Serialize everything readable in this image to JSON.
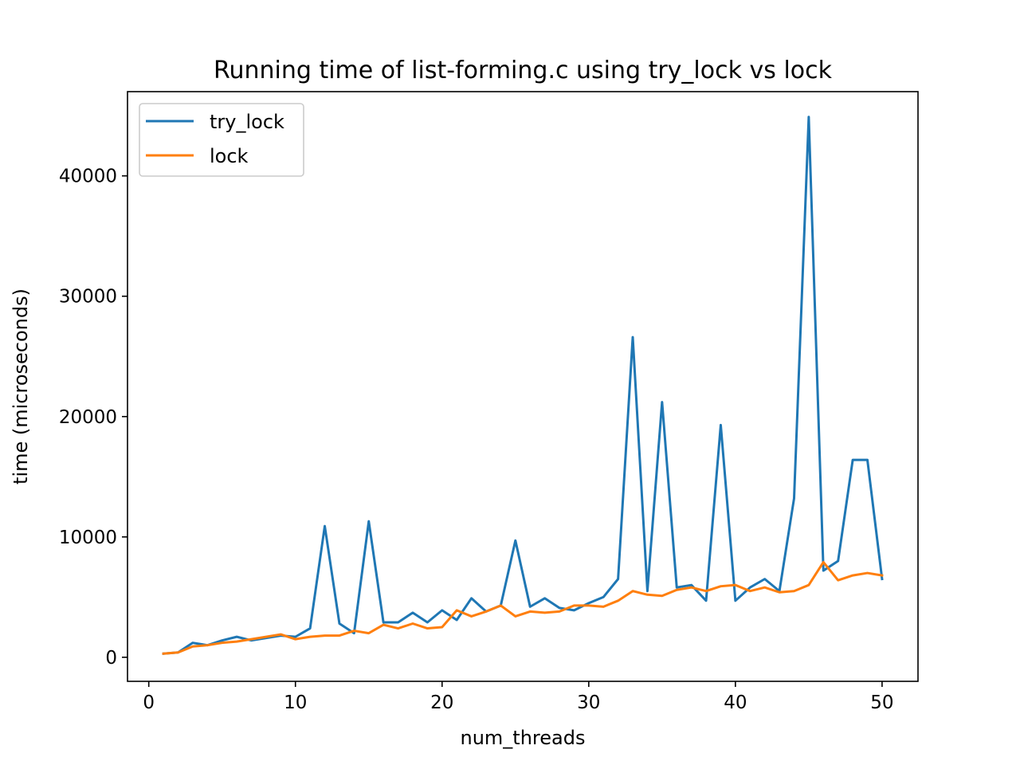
{
  "chart_data": {
    "type": "line",
    "title": "Running time of list-forming.c using try_lock vs lock",
    "xlabel": "num_threads",
    "ylabel": "time (microseconds)",
    "xlim": [
      -1.45,
      52.45
    ],
    "ylim": [
      -2000,
      47000
    ],
    "xticks": [
      0,
      10,
      20,
      30,
      40,
      50
    ],
    "yticks": [
      0,
      10000,
      20000,
      30000,
      40000
    ],
    "legend_position": "top-left",
    "grid": false,
    "x": [
      1,
      2,
      3,
      4,
      5,
      6,
      7,
      8,
      9,
      10,
      11,
      12,
      13,
      14,
      15,
      16,
      17,
      18,
      19,
      20,
      21,
      22,
      23,
      24,
      25,
      26,
      27,
      28,
      29,
      30,
      31,
      32,
      33,
      34,
      35,
      36,
      37,
      38,
      39,
      40,
      41,
      42,
      43,
      44,
      45,
      46,
      47,
      48,
      49,
      50
    ],
    "series": [
      {
        "name": "try_lock",
        "color": "#1f77b4",
        "values": [
          300,
          400,
          1200,
          1000,
          1400,
          1700,
          1400,
          1600,
          1800,
          1700,
          2400,
          10900,
          2800,
          2000,
          11300,
          2900,
          2900,
          3700,
          2900,
          3900,
          3100,
          4900,
          3800,
          4300,
          9700,
          4200,
          4900,
          4100,
          3900,
          4500,
          5000,
          6500,
          26600,
          5500,
          21200,
          5800,
          6000,
          4700,
          19300,
          4700,
          5800,
          6500,
          5500,
          13200,
          44900,
          7200,
          8000,
          16400,
          16400,
          6500
        ]
      },
      {
        "name": "lock",
        "color": "#ff7f0e",
        "values": [
          300,
          400,
          900,
          1000,
          1200,
          1300,
          1500,
          1700,
          1900,
          1500,
          1700,
          1800,
          1800,
          2200,
          2000,
          2700,
          2400,
          2800,
          2400,
          2500,
          3900,
          3400,
          3800,
          4300,
          3400,
          3800,
          3700,
          3800,
          4300,
          4300,
          4200,
          4700,
          5500,
          5200,
          5100,
          5600,
          5800,
          5500,
          5900,
          6000,
          5500,
          5800,
          5400,
          5500,
          6000,
          7900,
          6400,
          6800,
          7000,
          6800
        ]
      }
    ]
  }
}
